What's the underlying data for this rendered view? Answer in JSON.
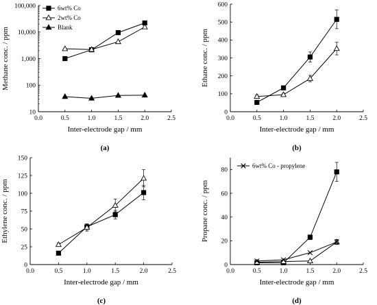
{
  "chart_data": [
    {
      "id": "a",
      "type": "scatter",
      "panel_label": "(a)",
      "title": "",
      "xlabel": "Inter-electrode gap / mm",
      "ylabel": "Methane conc. / ppm",
      "xlim": [
        0.0,
        2.5
      ],
      "xticks": [
        "0.0",
        "0.5",
        "1.0",
        "1.5",
        "2.0",
        "2.5"
      ],
      "yscale": "log",
      "ylim": [
        10,
        100000
      ],
      "yticks": [
        "10",
        "100",
        "1,000",
        "10,000",
        "100,000"
      ],
      "grid": false,
      "legend_position": "top-left",
      "series": [
        {
          "name": "6wt% Co",
          "marker": "filled-square",
          "x": [
            0.5,
            1.0,
            1.5,
            2.0
          ],
          "y": [
            1000,
            2150,
            9500,
            22000
          ],
          "err": [
            0,
            0,
            0,
            0
          ]
        },
        {
          "name": "2wt% Co",
          "marker": "open-triangle",
          "x": [
            0.5,
            1.0,
            1.5,
            2.0
          ],
          "y": [
            2350,
            2200,
            4300,
            15500
          ],
          "err": [
            0,
            0,
            0,
            0
          ]
        },
        {
          "name": "Blank",
          "marker": "filled-triangle",
          "x": [
            0.5,
            1.0,
            1.5,
            2.0
          ],
          "y": [
            37,
            32,
            41,
            42
          ],
          "err": [
            0,
            0,
            0,
            0
          ]
        }
      ]
    },
    {
      "id": "b",
      "type": "scatter",
      "panel_label": "(b)",
      "title": "",
      "xlabel": "Inter-electrode gap / mm",
      "ylabel": "Ethane conc. / ppm",
      "xlim": [
        0.0,
        2.5
      ],
      "xticks": [
        "0.0",
        "0.5",
        "1.0",
        "1.5",
        "2.0",
        "2.5"
      ],
      "yscale": "linear",
      "ylim": [
        0,
        600
      ],
      "yticks": [
        "0",
        "100",
        "200",
        "300",
        "400",
        "500",
        "600"
      ],
      "grid": false,
      "legend_position": "",
      "series": [
        {
          "marker": "filled-square",
          "x": [
            0.5,
            1.0,
            1.5,
            2.0
          ],
          "y": [
            52,
            133,
            305,
            515
          ],
          "err": [
            0,
            10,
            28,
            52
          ]
        },
        {
          "marker": "open-triangle",
          "x": [
            0.5,
            1.0,
            1.5,
            2.0
          ],
          "y": [
            85,
            95,
            185,
            352
          ],
          "err": [
            8,
            8,
            18,
            35
          ]
        }
      ]
    },
    {
      "id": "c",
      "type": "scatter",
      "panel_label": "(c)",
      "title": "",
      "xlabel": "Inter-electrode gap / mm",
      "ylabel": "Ethylene conc. / ppm",
      "xlim": [
        0.0,
        2.5
      ],
      "xticks": [
        "0.0",
        "0.5",
        "1.0",
        "1.5",
        "2.0",
        "2.5"
      ],
      "yscale": "linear",
      "ylim": [
        0,
        150
      ],
      "yticks": [
        "0",
        "25",
        "50",
        "75",
        "100",
        "125",
        "150"
      ],
      "grid": false,
      "legend_position": "",
      "series": [
        {
          "marker": "filled-square",
          "x": [
            0.5,
            1.0,
            1.5,
            2.0
          ],
          "y": [
            16,
            53,
            70,
            101
          ],
          "err": [
            0,
            4,
            6,
            10
          ]
        },
        {
          "marker": "open-triangle",
          "x": [
            0.5,
            1.0,
            1.5,
            2.0
          ],
          "y": [
            28,
            52,
            83,
            121
          ],
          "err": [
            2,
            5,
            9,
            12
          ]
        }
      ]
    },
    {
      "id": "d",
      "type": "scatter",
      "panel_label": "(d)",
      "title": "",
      "xlabel": "Inter-electrode gap / mm",
      "ylabel": "Propane conc. / ppm",
      "xlim": [
        0.0,
        2.5
      ],
      "xticks": [
        "0.0",
        "0.5",
        "1.0",
        "1.5",
        "2.0",
        "2.5"
      ],
      "yscale": "linear",
      "ylim": [
        0,
        90
      ],
      "yticks": [
        "0",
        "20",
        "40",
        "60",
        "80"
      ],
      "grid": false,
      "legend_position": "top-left",
      "series": [
        {
          "marker": "filled-square",
          "x": [
            0.5,
            1.0,
            1.5,
            2.0
          ],
          "y": [
            1.5,
            1.5,
            23,
            78
          ],
          "err": [
            0,
            0,
            2,
            8
          ]
        },
        {
          "marker": "open-triangle",
          "x": [
            0.5,
            1.0,
            1.5,
            2.0
          ],
          "y": [
            2,
            2.5,
            3,
            19
          ],
          "err": [
            0,
            0,
            0,
            2
          ]
        },
        {
          "name": "6wt% Co - propylene",
          "marker": "x",
          "x": [
            0.5,
            1.0,
            1.5,
            2.0
          ],
          "y": [
            3,
            4,
            10,
            19
          ],
          "err": [
            0,
            0,
            0,
            2
          ]
        }
      ]
    }
  ]
}
